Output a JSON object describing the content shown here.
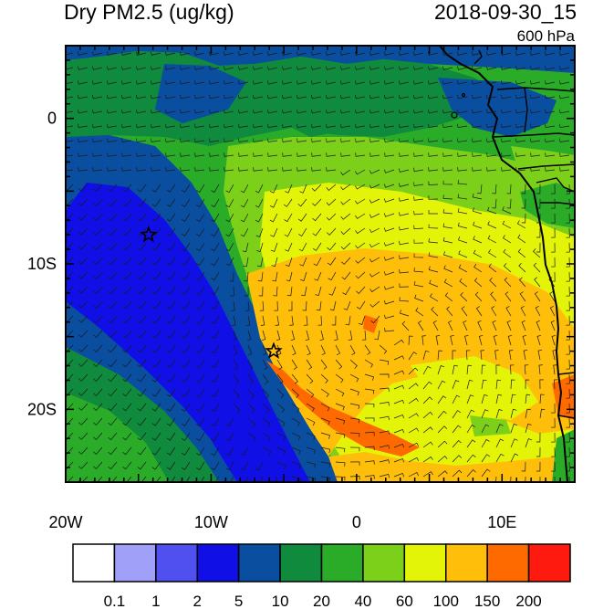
{
  "header": {
    "title": "Dry PM2.5 (ug/kg)",
    "datetime": "2018-09-30_15",
    "level": "600 hPa"
  },
  "map": {
    "lon_range": [
      -20,
      15
    ],
    "lat_range": [
      -25,
      5
    ],
    "x_ticks": [
      {
        "lon": -20,
        "label": "20W"
      },
      {
        "lon": -10,
        "label": "10W"
      },
      {
        "lon": 0,
        "label": "0"
      },
      {
        "lon": 10,
        "label": "10E"
      }
    ],
    "y_ticks": [
      {
        "lat": 0,
        "label": "0"
      },
      {
        "lat": -10,
        "label": "10S"
      },
      {
        "lat": -20,
        "label": "20S"
      }
    ],
    "markers": [
      {
        "name": "star-marker-west",
        "lon": -14.3,
        "lat": -8.0
      },
      {
        "name": "star-marker-center",
        "lon": -5.7,
        "lat": -16.0
      }
    ],
    "variable": "Dry PM2.5",
    "overlay": "wind barbs"
  },
  "colorbar": {
    "bins": [
      {
        "color": "#ffffff"
      },
      {
        "color": "#a0a0f8",
        "label": "0.1"
      },
      {
        "color": "#5050f0",
        "label": "1"
      },
      {
        "color": "#1010e6",
        "label": "2"
      },
      {
        "color": "#0a4ea0",
        "label": "5"
      },
      {
        "color": "#108a3c",
        "label": "10"
      },
      {
        "color": "#2aac28",
        "label": "20"
      },
      {
        "color": "#7cd01a",
        "label": "40"
      },
      {
        "color": "#e4f408",
        "label": "60"
      },
      {
        "color": "#ffbe0a",
        "label": "100"
      },
      {
        "color": "#ff6a00",
        "label": "150"
      },
      {
        "color": "#ff1a10",
        "label": "200"
      }
    ]
  }
}
